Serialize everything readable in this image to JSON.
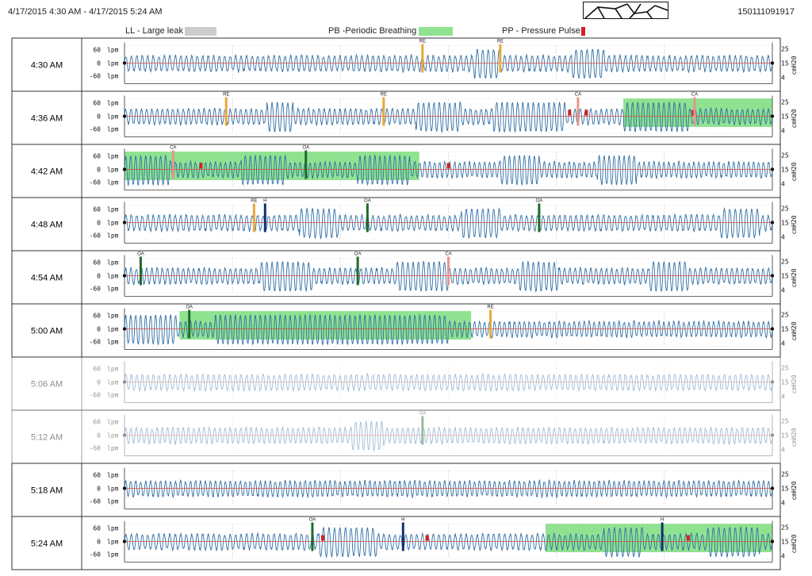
{
  "header": {
    "date_range": "4/17/2015  4:30 AM - 4/17/2015  5:24 AM",
    "device_id": "150111091917"
  },
  "legend": {
    "items": [
      {
        "label": "LL - Large leak",
        "color": "#cccccc"
      },
      {
        "label": "PB -Periodic Breathing",
        "color": "#8fe28f"
      },
      {
        "label": "PP - Pressure Pulse",
        "color": "#d42020"
      }
    ]
  },
  "colors": {
    "flow": "#2e6da4",
    "pressure": "#d84a3a",
    "periodic_breathing": "#8fe28f",
    "oa": "#1f6b2a",
    "ca": "#e8958a",
    "re": "#e9a83a",
    "h": "#13306e",
    "pp": "#d42020"
  },
  "chart_data": {
    "type": "line",
    "title": "",
    "left_axis": {
      "unit": "lpm",
      "ticks": [
        "60",
        "0",
        "-60"
      ]
    },
    "right_axis": {
      "unit": "cmH20",
      "ticks": [
        "25",
        "15",
        "4"
      ]
    },
    "rows": [
      {
        "label": "4:30 AM",
        "faded": false,
        "pb": [],
        "events": [
          {
            "type": "RE",
            "label": "RE",
            "t": 0.46
          },
          {
            "type": "RE",
            "label": "RE",
            "t": 0.58
          }
        ],
        "pp": [],
        "surges": [
          [
            0.54,
            0.58
          ],
          [
            0.69,
            0.74
          ]
        ]
      },
      {
        "label": "4:36 AM",
        "faded": false,
        "pb": [
          [
            0.77,
            1.0
          ]
        ],
        "events": [
          {
            "type": "RE",
            "label": "RE",
            "t": 0.157
          },
          {
            "type": "RE",
            "label": "RE",
            "t": 0.4
          },
          {
            "type": "CA",
            "label": "CA",
            "t": 0.7
          },
          {
            "type": "CA",
            "label": "CA",
            "t": 0.88
          }
        ],
        "pp": [
          0.687,
          0.713,
          0.878
        ],
        "surges": [
          [
            0.22,
            0.26
          ],
          [
            0.45,
            0.52
          ],
          [
            0.57,
            0.68
          ],
          [
            0.77,
            0.87
          ]
        ]
      },
      {
        "label": "4:42 AM",
        "faded": false,
        "pb": [
          [
            0.0,
            0.455
          ]
        ],
        "events": [
          {
            "type": "CA",
            "label": "CA",
            "t": 0.075
          },
          {
            "type": "OA",
            "label": "OA",
            "t": 0.28
          }
        ],
        "pp": [
          0.118,
          0.5
        ],
        "surges": [
          [
            0.0,
            0.07
          ],
          [
            0.18,
            0.25
          ],
          [
            0.36,
            0.44
          ],
          [
            0.58,
            0.64
          ],
          [
            0.73,
            0.79
          ]
        ]
      },
      {
        "label": "4:48 AM",
        "faded": false,
        "pb": [],
        "events": [
          {
            "type": "RE",
            "label": "RE",
            "t": 0.2
          },
          {
            "type": "H",
            "label": "H",
            "t": 0.217
          },
          {
            "type": "OA",
            "label": "OA",
            "t": 0.375
          },
          {
            "type": "OA",
            "label": "OA",
            "t": 0.64
          }
        ],
        "pp": [],
        "surges": [
          [
            0.27,
            0.33
          ],
          [
            0.52,
            0.58
          ],
          [
            0.92,
            0.98
          ]
        ]
      },
      {
        "label": "4:54 AM",
        "faded": false,
        "pb": [],
        "events": [
          {
            "type": "OA",
            "label": "OA",
            "t": 0.025
          },
          {
            "type": "OA",
            "label": "OA",
            "t": 0.36
          },
          {
            "type": "CA",
            "label": "CA",
            "t": 0.5
          }
        ],
        "pp": [],
        "surges": [
          [
            0.21,
            0.29
          ],
          [
            0.42,
            0.5
          ],
          [
            0.61,
            0.67
          ],
          [
            0.81,
            0.87
          ]
        ]
      },
      {
        "label": "5:00 AM",
        "faded": false,
        "pb": [
          [
            0.085,
            0.535
          ]
        ],
        "events": [
          {
            "type": "OA",
            "label": "OA",
            "t": 0.1
          },
          {
            "type": "RE",
            "label": "RE",
            "t": 0.565
          }
        ],
        "pp": [],
        "surges": [
          [
            0.0,
            0.08
          ],
          [
            0.14,
            0.5
          ]
        ]
      },
      {
        "label": "5:06 AM",
        "faded": true,
        "pb": [],
        "events": [],
        "pp": [],
        "surges": []
      },
      {
        "label": "5:12 AM",
        "faded": true,
        "pb": [],
        "events": [
          {
            "type": "OA",
            "label": "OA",
            "t": 0.46
          }
        ],
        "pp": [],
        "surges": [
          [
            0.35,
            0.4
          ]
        ]
      },
      {
        "label": "5:18 AM",
        "faded": false,
        "pb": [],
        "events": [],
        "pp": [],
        "surges": []
      },
      {
        "label": "5:24 AM",
        "faded": false,
        "pb": [
          [
            0.65,
            1.0
          ]
        ],
        "events": [
          {
            "type": "OA",
            "label": "OA",
            "t": 0.29
          },
          {
            "type": "H",
            "label": "H",
            "t": 0.43
          },
          {
            "type": "H",
            "label": "H",
            "t": 0.83
          }
        ],
        "pp": [
          0.306,
          0.467,
          0.87
        ],
        "surges": [
          [
            0.3,
            0.39
          ],
          [
            0.74,
            0.8
          ],
          [
            0.9,
            0.98
          ]
        ]
      }
    ]
  }
}
